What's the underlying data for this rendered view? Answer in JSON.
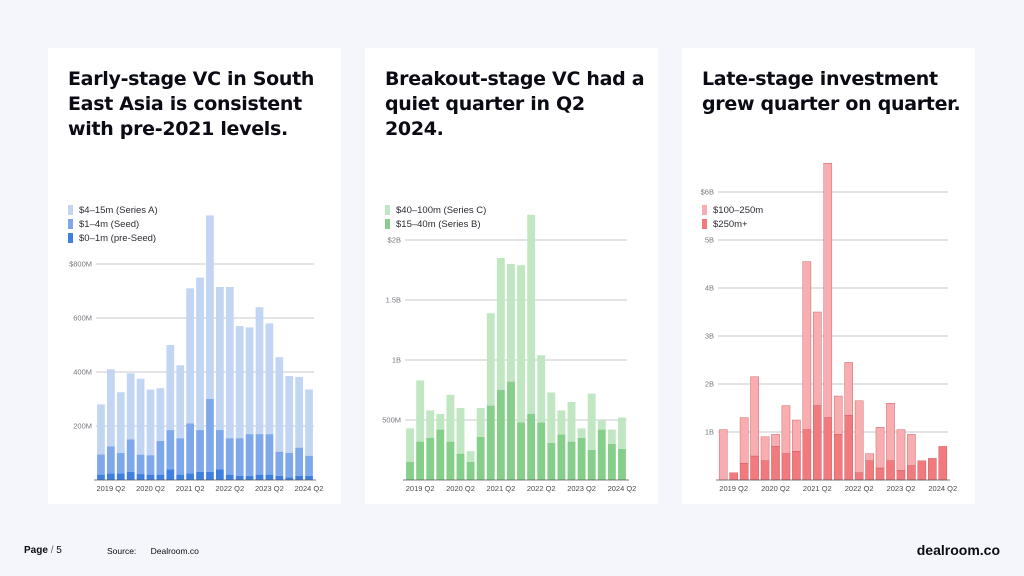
{
  "footer": {
    "page_label": "Page",
    "page_number": "5",
    "source_label": "Source:",
    "source_value": "Dealroom.co"
  },
  "brand": "dealroom.co",
  "chart_data": [
    {
      "type": "bar",
      "stacked": true,
      "title": "Early-stage VC in South East Asia is consistent with pre-2021 levels.",
      "xlabel": "",
      "ylabel": "",
      "ylim": [
        0,
        1000
      ],
      "yticks": [
        200,
        400,
        600,
        800
      ],
      "ytick_labels": [
        "200M",
        "400M",
        "600M",
        "$800M"
      ],
      "xtick_labels": [
        "2019 Q2",
        "2020 Q2",
        "2021 Q2",
        "2022 Q2",
        "2023 Q2",
        "2024 Q2"
      ],
      "xtick_indices": [
        1,
        5,
        9,
        13,
        17,
        21
      ],
      "categories": [
        "2019 Q1",
        "2019 Q2",
        "2019 Q3",
        "2019 Q4",
        "2020 Q1",
        "2020 Q2",
        "2020 Q3",
        "2020 Q4",
        "2021 Q1",
        "2021 Q2",
        "2021 Q3",
        "2021 Q4",
        "2022 Q1",
        "2022 Q2",
        "2022 Q3",
        "2022 Q4",
        "2023 Q1",
        "2023 Q2",
        "2023 Q3",
        "2023 Q4",
        "2024 Q1",
        "2024 Q2"
      ],
      "legend": [
        "$4–15m (Series A)",
        "$1–4m (Seed)",
        "$0–1m (pre-Seed)"
      ],
      "series": [
        {
          "name": "$0–1m (pre-Seed)",
          "color": "#3f7fe0",
          "values": [
            20,
            25,
            25,
            30,
            22,
            20,
            20,
            40,
            20,
            25,
            30,
            30,
            40,
            20,
            15,
            15,
            20,
            20,
            15,
            10,
            15,
            15
          ]
        },
        {
          "name": "$1–4m (Seed)",
          "color": "#7ea8ea",
          "values": [
            75,
            100,
            75,
            120,
            72,
            72,
            125,
            145,
            135,
            185,
            155,
            270,
            145,
            135,
            140,
            155,
            150,
            150,
            90,
            90,
            105,
            75
          ]
        },
        {
          "name": "$4–15m (Series A)",
          "color": "#c2d5f3",
          "values": [
            185,
            285,
            225,
            245,
            281,
            243,
            195,
            315,
            270,
            500,
            565,
            680,
            530,
            560,
            415,
            395,
            470,
            410,
            350,
            285,
            262,
            245
          ]
        }
      ]
    },
    {
      "type": "bar",
      "stacked": true,
      "title": "Breakout-stage VC had a quiet quarter in Q2 2024.",
      "xlabel": "",
      "ylabel": "",
      "ylim": [
        0,
        2.5
      ],
      "yticks": [
        0.5,
        1,
        1.5,
        2
      ],
      "ytick_labels": [
        "500M",
        "1B",
        "1.5B",
        "$2B"
      ],
      "xtick_labels": [
        "2019 Q2",
        "2020 Q2",
        "2021 Q2",
        "2022 Q2",
        "2023 Q2",
        "2024 Q2"
      ],
      "xtick_indices": [
        1,
        5,
        9,
        13,
        17,
        21
      ],
      "categories": [
        "2019 Q1",
        "2019 Q2",
        "2019 Q3",
        "2019 Q4",
        "2020 Q1",
        "2020 Q2",
        "2020 Q3",
        "2020 Q4",
        "2021 Q1",
        "2021 Q2",
        "2021 Q3",
        "2021 Q4",
        "2022 Q1",
        "2022 Q2",
        "2022 Q3",
        "2022 Q4",
        "2023 Q1",
        "2023 Q2",
        "2023 Q3",
        "2023 Q4",
        "2024 Q1",
        "2024 Q2"
      ],
      "legend": [
        "$40–100m (Series C)",
        "$15–40m (Series B)"
      ],
      "series": [
        {
          "name": "$15–40m (Series B)",
          "color": "#86cf8a",
          "values": [
            0.15,
            0.32,
            0.35,
            0.42,
            0.32,
            0.22,
            0.15,
            0.36,
            0.62,
            0.75,
            0.82,
            0.48,
            0.55,
            0.48,
            0.31,
            0.38,
            0.32,
            0.35,
            0.25,
            0.42,
            0.3,
            0.26
          ]
        },
        {
          "name": "$40–100m (Series C)",
          "color": "#c1e7c2",
          "values": [
            0.28,
            0.51,
            0.23,
            0.13,
            0.39,
            0.38,
            0.09,
            0.24,
            0.77,
            1.1,
            0.98,
            1.31,
            1.66,
            0.56,
            0.42,
            0.2,
            0.33,
            0.08,
            0.47,
            0.08,
            0.12,
            0.26
          ]
        }
      ]
    },
    {
      "type": "bar",
      "stacked": true,
      "title": "Late-stage investment grew quarter on quarter.",
      "xlabel": "",
      "ylabel": "",
      "ylim": [
        0,
        6.5
      ],
      "yticks": [
        1,
        2,
        3,
        4,
        5,
        6
      ],
      "ytick_labels": [
        "1B",
        "2B",
        "3B",
        "4B",
        "5B",
        "$6B"
      ],
      "xtick_labels": [
        "2019 Q2",
        "2020 Q2",
        "2021 Q2",
        "2022 Q2",
        "2023 Q2",
        "2024 Q2"
      ],
      "xtick_indices": [
        1,
        5,
        9,
        13,
        17,
        21
      ],
      "categories": [
        "2019 Q1",
        "2019 Q2",
        "2019 Q3",
        "2019 Q4",
        "2020 Q1",
        "2020 Q2",
        "2020 Q3",
        "2020 Q4",
        "2021 Q1",
        "2021 Q2",
        "2021 Q3",
        "2021 Q4",
        "2022 Q1",
        "2022 Q2",
        "2022 Q3",
        "2022 Q4",
        "2023 Q1",
        "2023 Q2",
        "2023 Q3",
        "2023 Q4",
        "2024 Q1",
        "2024 Q2"
      ],
      "legend": [
        "$100–250m",
        "$250m+"
      ],
      "series": [
        {
          "name": "$250m+",
          "color": "#f17a7e",
          "values": [
            0,
            0.15,
            0.35,
            0.5,
            0.4,
            0.7,
            0.55,
            0.6,
            1.05,
            1.55,
            1.3,
            0.95,
            1.35,
            0.15,
            0.4,
            0.25,
            0.4,
            0.2,
            0.3,
            0.4,
            0.45,
            0.7
          ]
        },
        {
          "name": "$100–250m",
          "color": "#f8aeb0",
          "values": [
            1.05,
            0,
            0.95,
            1.65,
            0.5,
            0.25,
            1.0,
            0.65,
            3.5,
            1.95,
            5.3,
            0.8,
            1.1,
            1.5,
            0.15,
            0.85,
            1.2,
            0.85,
            0.65,
            0,
            0,
            0
          ]
        }
      ]
    }
  ]
}
